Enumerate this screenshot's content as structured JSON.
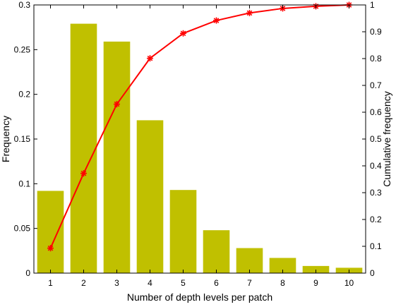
{
  "chart_data": {
    "type": "bar",
    "categories": [
      "1",
      "2",
      "3",
      "4",
      "5",
      "6",
      "7",
      "8",
      "9",
      "10"
    ],
    "xlabel": "Number of depth levels per patch",
    "ylabel": "Frequency",
    "ylabel_right": "Cumulative frequency",
    "ylim": [
      0,
      0.3
    ],
    "ylim_right": [
      0,
      1
    ],
    "yticks": [
      "0",
      "0.05",
      "0.1",
      "0.15",
      "0.2",
      "0.25",
      "0.3"
    ],
    "yticks_right": [
      "0",
      "0.1",
      "0.2",
      "0.3",
      "0.4",
      "0.5",
      "0.6",
      "0.7",
      "0.8",
      "0.9",
      "1"
    ],
    "series": [
      {
        "type": "bar",
        "axis": "left",
        "color": "#c0c000",
        "values": [
          0.092,
          0.279,
          0.259,
          0.171,
          0.093,
          0.048,
          0.028,
          0.017,
          0.008,
          0.006
        ]
      },
      {
        "type": "line",
        "axis": "right",
        "color": "#ff0000",
        "marker": "asterisk",
        "values": [
          0.093,
          0.372,
          0.63,
          0.801,
          0.894,
          0.942,
          0.97,
          0.987,
          0.995,
          1.0
        ]
      }
    ],
    "grid": false,
    "legend": "none"
  }
}
